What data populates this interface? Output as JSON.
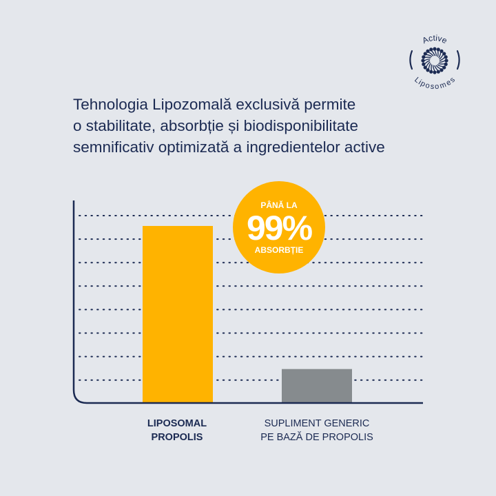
{
  "logo": {
    "text_top": "Active",
    "text_bottom": "Liposomes"
  },
  "title": {
    "lines": [
      "Tehnologia Lipozomală exclusivă permite",
      "o stabilitate, absorbție și biodisponibilitate",
      "semnificativ optimizată a ingredientelor active"
    ]
  },
  "badge": {
    "top": "PÂNĂ LA",
    "value": "99%",
    "bottom": "ABSORBȚIE"
  },
  "colors": {
    "navy": "#1b2a52",
    "accent": "#ffb300",
    "generic": "#868b8e",
    "background": "#e4e7ec"
  },
  "chart_data": {
    "type": "bar",
    "categories": [
      "LIPOSOMAL PROPOLIS",
      "SUPLIMENT GENERIC PE BAZĂ DE PROPOLIS"
    ],
    "category_lines": [
      [
        "LIPOSOMAL",
        "PROPOLIS"
      ],
      [
        "SUPLIMENT GENERIC",
        "PE BAZĂ DE PROPOLIS"
      ]
    ],
    "values": [
      99,
      19
    ],
    "bar_colors": [
      "#ffb300",
      "#868b8e"
    ],
    "ylim": [
      0,
      105
    ],
    "grid": "dotted horizontal",
    "xlabel": "",
    "ylabel": ""
  }
}
